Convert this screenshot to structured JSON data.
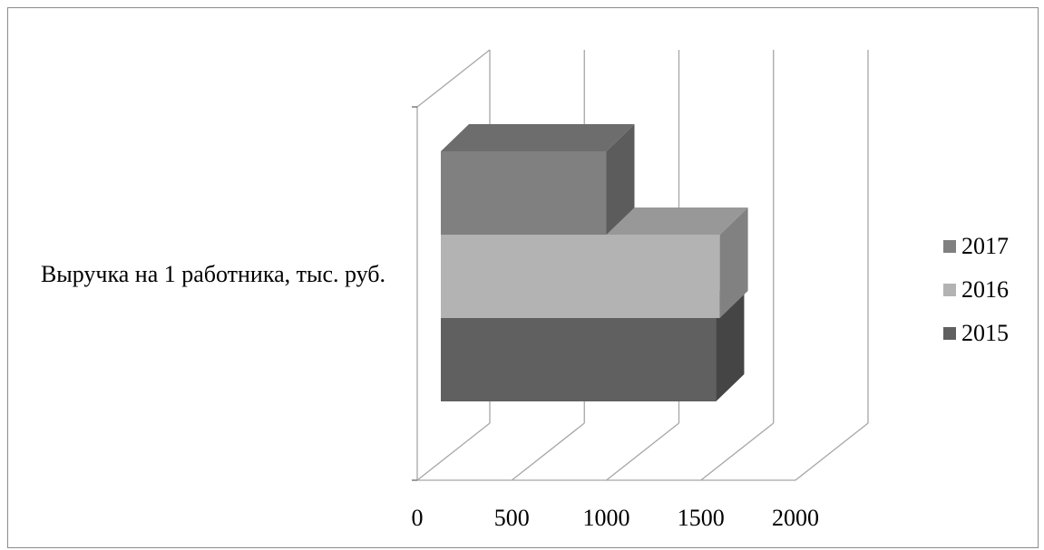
{
  "chart_data": {
    "type": "bar",
    "orientation": "horizontal",
    "style": "3d",
    "categories": [
      "Выручка на 1 работника, тыс. руб."
    ],
    "series": [
      {
        "name": "2015",
        "values": [
          1580
        ],
        "color": "#606060"
      },
      {
        "name": "2016",
        "values": [
          1600
        ],
        "color": "#b3b3b3"
      },
      {
        "name": "2017",
        "values": [
          1000
        ],
        "color": "#808080"
      }
    ],
    "xlim": [
      0,
      2000
    ],
    "xticks": [
      "0",
      "500",
      "1000",
      "1500",
      "2000"
    ],
    "grid": true,
    "legend": "right",
    "legend_order": [
      "2017",
      "2016",
      "2015"
    ]
  }
}
